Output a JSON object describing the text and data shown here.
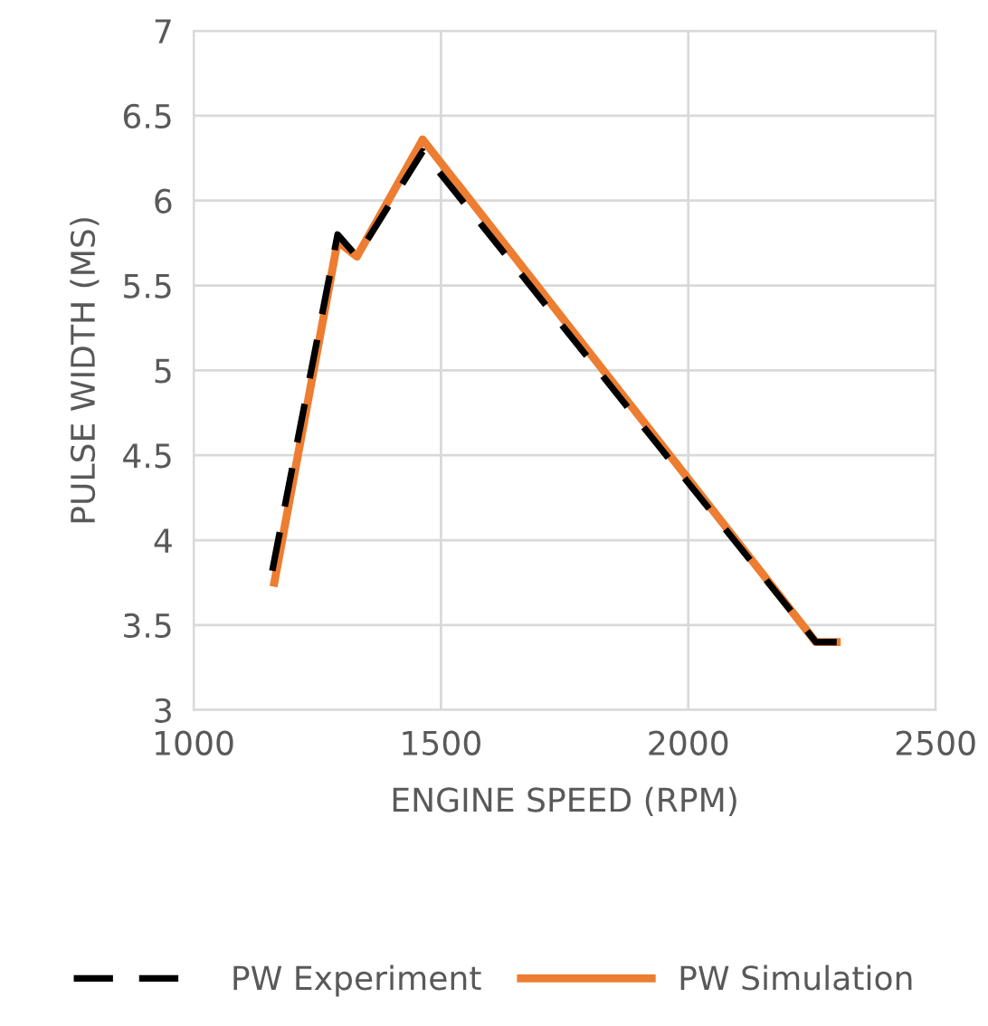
{
  "chart_data": {
    "type": "line",
    "xlabel": "ENGINE SPEED (RPM)",
    "ylabel": "PULSE WIDTH (MS)",
    "xlim": [
      1000,
      2500
    ],
    "xticks": [
      1000,
      1500,
      2000,
      2500
    ],
    "ylim": [
      3,
      7
    ],
    "yticks": [
      3,
      3.5,
      4,
      4.5,
      5,
      5.5,
      6,
      6.5,
      7
    ],
    "grid": true,
    "legend": "bottom",
    "series": [
      {
        "name": "PW Experiment",
        "color": "#000000",
        "line_style": "dashed",
        "x": [
          1159,
          1291,
          1330,
          1463,
          2258,
          2300
        ],
        "values": [
          3.82,
          5.8,
          5.67,
          6.29,
          3.4,
          3.4
        ]
      },
      {
        "name": "PW Simulation",
        "color": "#ed7d31",
        "line_style": "solid",
        "x": [
          1163,
          1291,
          1330,
          1463,
          2258,
          2300
        ],
        "values": [
          3.75,
          5.76,
          5.67,
          6.36,
          3.4,
          3.4
        ]
      }
    ]
  }
}
